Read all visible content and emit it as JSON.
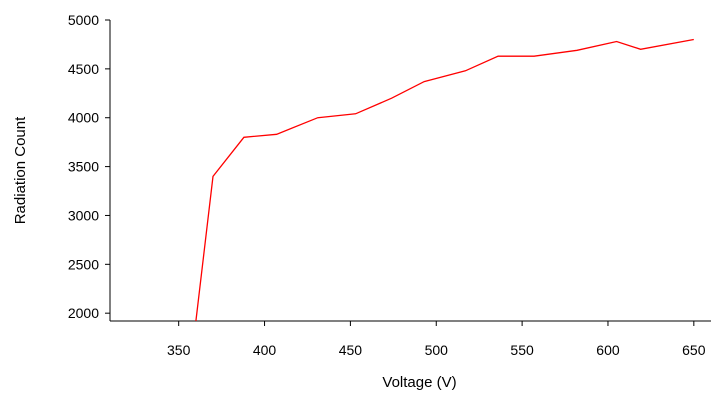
{
  "chart_data": {
    "type": "line",
    "title": "",
    "xlabel": "Voltage (V)",
    "ylabel": "Radiation Count",
    "xlim": [
      310,
      660
    ],
    "ylim": [
      1920,
      5000
    ],
    "xticks": [
      350,
      400,
      450,
      500,
      550,
      600,
      650
    ],
    "yticks": [
      2000,
      2500,
      3000,
      3500,
      4000,
      4500,
      5000
    ],
    "xtick_labels": [
      "350",
      "400",
      "450",
      "500",
      "550",
      "600",
      "650"
    ],
    "ytick_labels": [
      "2000",
      "2500",
      "3000",
      "3500",
      "4000",
      "4500",
      "5000"
    ],
    "grid": false,
    "legend": "none",
    "series": [
      {
        "color": "#ff0000",
        "x": [
          360,
          370,
          388,
          407,
          431,
          453,
          474,
          493,
          517,
          536,
          557,
          582,
          605,
          619,
          650
        ],
        "y": [
          1920,
          3400,
          3800,
          3830,
          4000,
          4040,
          4200,
          4370,
          4480,
          4630,
          4630,
          4690,
          4780,
          4700,
          4800
        ]
      }
    ]
  }
}
